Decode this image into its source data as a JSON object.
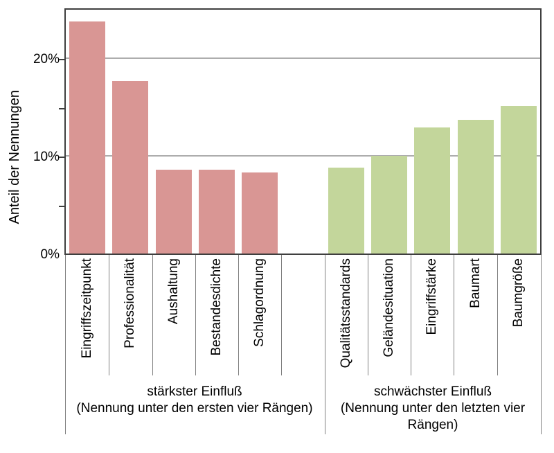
{
  "chart_data": {
    "type": "bar",
    "title": "",
    "xlabel": "",
    "ylabel": "Anteil der Nennungen",
    "ylim": [
      0,
      25
    ],
    "grid": "horizontal",
    "grid_values": [
      10,
      20
    ],
    "axis_tick_values": [
      5,
      10,
      15,
      20
    ],
    "yticks": [
      {
        "value": 0,
        "label": "0%"
      },
      {
        "value": 10,
        "label": "10%"
      },
      {
        "value": 20,
        "label": "20%"
      }
    ],
    "legend": "none",
    "groups": [
      {
        "caption_title": "stärkster Einfluß",
        "caption_subtitle": "(Nennung unter den ersten vier Rängen)",
        "color": "#d99694",
        "categories": [
          "Eingriffszeitpunkt",
          "Professionalität",
          "Aushaltung",
          "Bestandesdichte",
          "Schlagordnung"
        ],
        "values": [
          23.8,
          17.7,
          8.6,
          8.6,
          8.3
        ]
      },
      {
        "caption_title": "schwächster Einfluß",
        "caption_subtitle": "(Nennung unter den letzten vier Rängen)",
        "color": "#c3d69b",
        "categories": [
          "Qualitätsstandards",
          "Geländesituation",
          "Eingriffstärke",
          "Baumart",
          "Baumgröße"
        ],
        "values": [
          8.8,
          10.0,
          12.9,
          13.7,
          15.1
        ]
      }
    ],
    "colors": {
      "frame": "#3f3f3f",
      "gridline": "#adadad",
      "separator": "#808080",
      "text": "#000000"
    }
  }
}
